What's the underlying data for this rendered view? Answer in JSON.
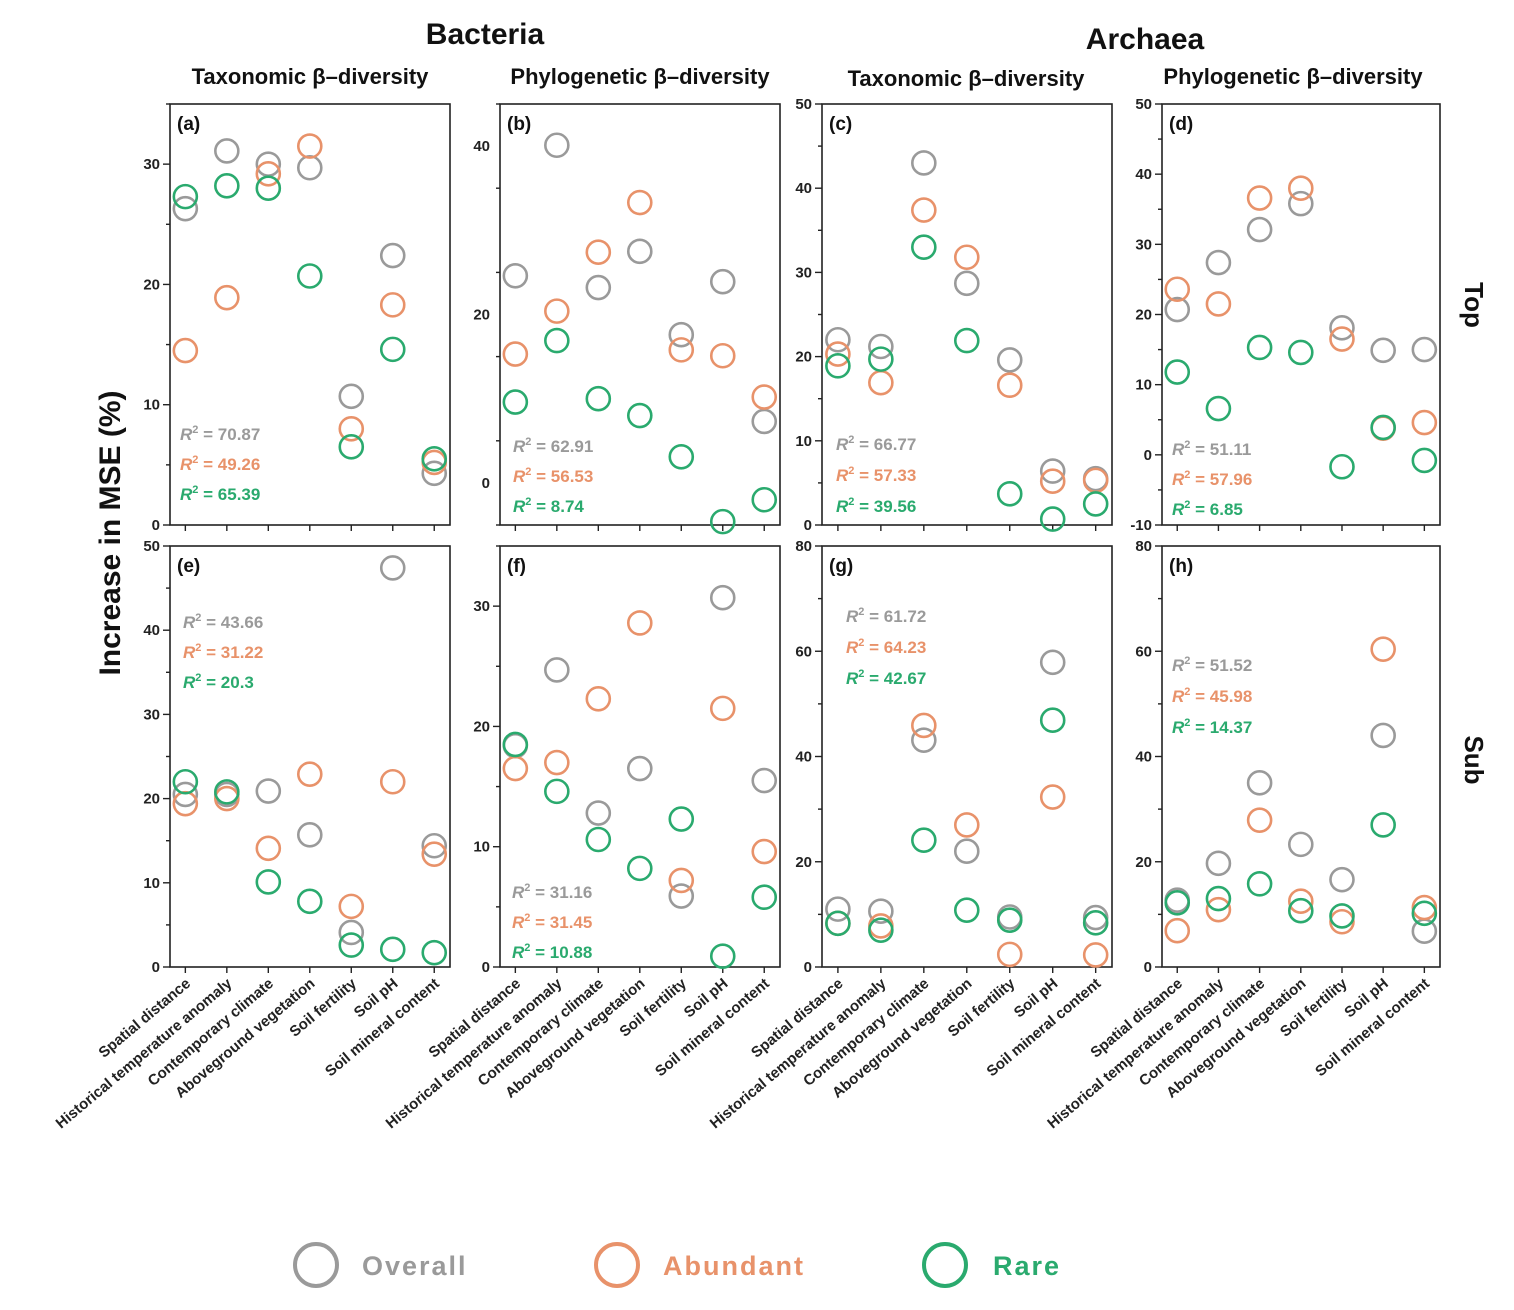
{
  "figure": {
    "group_titles": [
      "Bacteria",
      "Archaea"
    ],
    "column_titles": [
      "Taxonomic β–diversity",
      "Phylogenetic β–diversity",
      "Taxonomic β–diversity",
      "Phylogenetic β–diversity"
    ],
    "row_labels": [
      "Top",
      "Sub"
    ],
    "y_axis_label": "Increase in MSE (%)",
    "categories": [
      "Spatial distance",
      "Historical temperature anomaly",
      "Contemporary climate",
      "Aboveground vegetation",
      "Soil fertility",
      "Soil pH",
      "Soil mineral content"
    ],
    "legend": [
      {
        "name": "Overall",
        "color": "#9a9a9a"
      },
      {
        "name": "Abundant",
        "color": "#e8926a"
      },
      {
        "name": "Rare",
        "color": "#2aaa6e"
      }
    ],
    "colors": {
      "overall": "#9a9a9a",
      "abundant": "#e8926a",
      "rare": "#2aaa6e"
    }
  },
  "chart_data": [
    {
      "type": "scatter",
      "panel": "(a)",
      "ylim": [
        0,
        35
      ],
      "yticks": [
        0,
        10,
        20,
        30
      ],
      "ylabel": "Increase in MSE (%)",
      "categories": [
        "Spatial distance",
        "Historical temperature anomaly",
        "Contemporary climate",
        "Aboveground vegetation",
        "Soil fertility",
        "Soil pH",
        "Soil mineral content"
      ],
      "series": [
        {
          "name": "Overall",
          "values": [
            26.3,
            31.1,
            30.0,
            29.7,
            10.7,
            22.4,
            4.3
          ]
        },
        {
          "name": "Abundant",
          "values": [
            14.5,
            18.9,
            29.2,
            31.5,
            8.0,
            18.3,
            5.2
          ]
        },
        {
          "name": "Rare",
          "values": [
            27.3,
            28.2,
            28.0,
            20.7,
            6.5,
            14.6,
            5.5
          ]
        }
      ],
      "r2": [
        "70.87",
        "49.26",
        "65.39"
      ]
    },
    {
      "type": "scatter",
      "panel": "(b)",
      "ylim": [
        -5,
        45
      ],
      "yticks": [
        0,
        20,
        40
      ],
      "categories": [
        "Spatial distance",
        "Historical temperature anomaly",
        "Contemporary climate",
        "Aboveground vegetation",
        "Soil fertility",
        "Soil pH",
        "Soil mineral content"
      ],
      "series": [
        {
          "name": "Overall",
          "values": [
            24.6,
            40.1,
            23.2,
            27.5,
            17.6,
            23.9,
            7.3
          ]
        },
        {
          "name": "Abundant",
          "values": [
            15.3,
            20.4,
            27.4,
            33.3,
            15.8,
            15.1,
            10.2
          ]
        },
        {
          "name": "Rare",
          "values": [
            9.6,
            16.9,
            10.0,
            8.0,
            3.1,
            -4.6,
            -2.0
          ]
        }
      ],
      "r2": [
        "62.91",
        "56.53",
        "8.74"
      ]
    },
    {
      "type": "scatter",
      "panel": "(c)",
      "ylim": [
        0,
        50
      ],
      "yticks": [
        0,
        10,
        20,
        30,
        40,
        50
      ],
      "categories": [
        "Spatial distance",
        "Historical temperature anomaly",
        "Contemporary climate",
        "Aboveground vegetation",
        "Soil fertility",
        "Soil pH",
        "Soil mineral content"
      ],
      "series": [
        {
          "name": "Overall",
          "values": [
            22.0,
            21.2,
            43.0,
            28.7,
            19.6,
            6.4,
            5.5
          ]
        },
        {
          "name": "Abundant",
          "values": [
            20.3,
            16.9,
            37.4,
            31.8,
            16.6,
            5.2,
            5.3
          ]
        },
        {
          "name": "Rare",
          "values": [
            18.9,
            19.7,
            33.0,
            21.9,
            3.7,
            0.7,
            2.5
          ]
        }
      ],
      "r2": [
        "66.77",
        "57.33",
        "39.56"
      ]
    },
    {
      "type": "scatter",
      "panel": "(d)",
      "ylim": [
        -10,
        50
      ],
      "yticks": [
        -10,
        0,
        10,
        20,
        30,
        40,
        50
      ],
      "categories": [
        "Spatial distance",
        "Historical temperature anomaly",
        "Contemporary climate",
        "Aboveground vegetation",
        "Soil fertility",
        "Soil pH",
        "Soil mineral content"
      ],
      "series": [
        {
          "name": "Overall",
          "values": [
            20.7,
            27.4,
            32.1,
            35.8,
            18.1,
            14.9,
            15.0
          ]
        },
        {
          "name": "Abundant",
          "values": [
            23.6,
            21.5,
            36.6,
            38.0,
            16.5,
            3.8,
            4.6
          ]
        },
        {
          "name": "Rare",
          "values": [
            11.8,
            6.6,
            15.3,
            14.6,
            -1.7,
            3.9,
            -0.8
          ]
        }
      ],
      "r2": [
        "51.11",
        "57.96",
        "6.85"
      ]
    },
    {
      "type": "scatter",
      "panel": "(e)",
      "ylim": [
        0,
        50
      ],
      "yticks": [
        0,
        10,
        20,
        30,
        40,
        50
      ],
      "categories": [
        "Spatial distance",
        "Historical temperature anomaly",
        "Contemporary climate",
        "Aboveground vegetation",
        "Soil fertility",
        "Soil pH",
        "Soil mineral content"
      ],
      "series": [
        {
          "name": "Overall",
          "values": [
            20.5,
            20.5,
            20.9,
            15.7,
            4.1,
            47.4,
            14.4
          ]
        },
        {
          "name": "Abundant",
          "values": [
            19.4,
            20.0,
            14.1,
            22.9,
            7.2,
            22.0,
            13.4
          ]
        },
        {
          "name": "Rare",
          "values": [
            22.0,
            20.8,
            10.1,
            7.8,
            2.6,
            2.1,
            1.7
          ]
        }
      ],
      "r2": [
        "43.66",
        "31.22",
        "20.3"
      ]
    },
    {
      "type": "scatter",
      "panel": "(f)",
      "ylim": [
        0,
        35
      ],
      "yticks": [
        0,
        10,
        20,
        30
      ],
      "categories": [
        "Spatial distance",
        "Historical temperature anomaly",
        "Contemporary climate",
        "Aboveground vegetation",
        "Soil fertility",
        "Soil pH",
        "Soil mineral content"
      ],
      "series": [
        {
          "name": "Overall",
          "values": [
            18.4,
            24.7,
            12.8,
            16.5,
            5.9,
            30.7,
            15.5
          ]
        },
        {
          "name": "Abundant",
          "values": [
            16.5,
            17.0,
            22.3,
            28.6,
            7.2,
            21.5,
            9.6
          ]
        },
        {
          "name": "Rare",
          "values": [
            18.5,
            14.6,
            10.6,
            8.2,
            12.3,
            0.9,
            5.8
          ]
        }
      ],
      "r2": [
        "31.16",
        "31.45",
        "10.88"
      ]
    },
    {
      "type": "scatter",
      "panel": "(g)",
      "ylim": [
        0,
        80
      ],
      "yticks": [
        0,
        20,
        40,
        60,
        80
      ],
      "categories": [
        "Spatial distance",
        "Historical temperature anomaly",
        "Contemporary climate",
        "Aboveground vegetation",
        "Soil fertility",
        "Soil pH",
        "Soil mineral content"
      ],
      "series": [
        {
          "name": "Overall",
          "values": [
            11.0,
            10.6,
            43.1,
            22.0,
            9.5,
            57.9,
            9.4
          ]
        },
        {
          "name": "Abundant",
          "values": [
            8.3,
            7.8,
            45.9,
            27.0,
            2.4,
            32.3,
            2.3
          ]
        },
        {
          "name": "Rare",
          "values": [
            8.3,
            7.0,
            24.1,
            10.8,
            8.9,
            46.9,
            8.4
          ]
        }
      ],
      "r2": [
        "61.72",
        "64.23",
        "42.67"
      ]
    },
    {
      "type": "scatter",
      "panel": "(h)",
      "ylim": [
        0,
        80
      ],
      "yticks": [
        0,
        20,
        40,
        60,
        80
      ],
      "categories": [
        "Spatial distance",
        "Historical temperature anomaly",
        "Contemporary climate",
        "Aboveground vegetation",
        "Soil fertility",
        "Soil pH",
        "Soil mineral content"
      ],
      "series": [
        {
          "name": "Overall",
          "values": [
            12.7,
            19.7,
            35.0,
            23.3,
            16.6,
            44.0,
            6.8
          ]
        },
        {
          "name": "Abundant",
          "values": [
            6.9,
            10.9,
            27.9,
            12.5,
            8.6,
            60.4,
            11.3
          ]
        },
        {
          "name": "Rare",
          "values": [
            12.2,
            13.0,
            15.8,
            10.7,
            9.7,
            27.0,
            10.2
          ]
        }
      ],
      "r2": [
        "51.52",
        "45.98",
        "14.37"
      ]
    }
  ]
}
